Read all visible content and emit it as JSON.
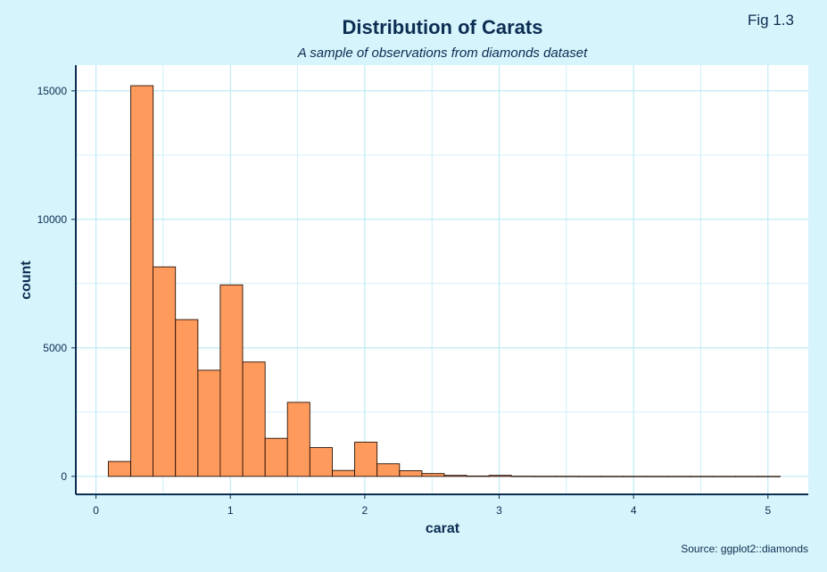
{
  "figure": {
    "tag": "Fig 1.3",
    "caption": "Source: ggplot2::diamonds"
  },
  "colors": {
    "background": "#d6f4fb",
    "panel": "#ffffff",
    "grid": "#b9e9f3",
    "bar_fill": "#fe9a5c",
    "bar_stroke": "#2b1306",
    "axis": "#0b2d52",
    "text": "#0b2d52"
  },
  "chart_data": {
    "type": "bar",
    "title": "Distribution of Carats",
    "subtitle": "A sample of observations from diamonds dataset",
    "xlabel": "carat",
    "ylabel": "count",
    "xlim": [
      -0.15,
      5.3
    ],
    "ylim": [
      -700,
      16000
    ],
    "x_ticks": [
      0,
      1,
      2,
      3,
      4,
      5
    ],
    "x_tick_labels": [
      "0",
      "1",
      "2",
      "3",
      "4",
      "5"
    ],
    "y_ticks": [
      0,
      5000,
      10000,
      15000
    ],
    "y_tick_labels": [
      "0",
      "5000",
      "10000",
      "15000"
    ],
    "grid": true,
    "bin_width": 0.1667,
    "bin_centers": [
      0.175,
      0.342,
      0.508,
      0.675,
      0.842,
      1.008,
      1.175,
      1.342,
      1.508,
      1.675,
      1.842,
      2.008,
      2.175,
      2.342,
      2.508,
      2.675,
      2.842,
      3.008,
      3.175,
      3.342,
      3.508,
      3.675,
      3.842,
      4.008,
      4.175,
      4.342,
      4.508,
      4.675,
      4.842,
      5.008
    ],
    "counts": [
      580,
      15200,
      8150,
      6100,
      4130,
      7450,
      4450,
      1480,
      2880,
      1120,
      230,
      1330,
      490,
      220,
      110,
      40,
      15,
      40,
      8,
      5,
      5,
      3,
      3,
      3,
      2,
      2,
      2,
      2,
      2,
      2
    ]
  }
}
